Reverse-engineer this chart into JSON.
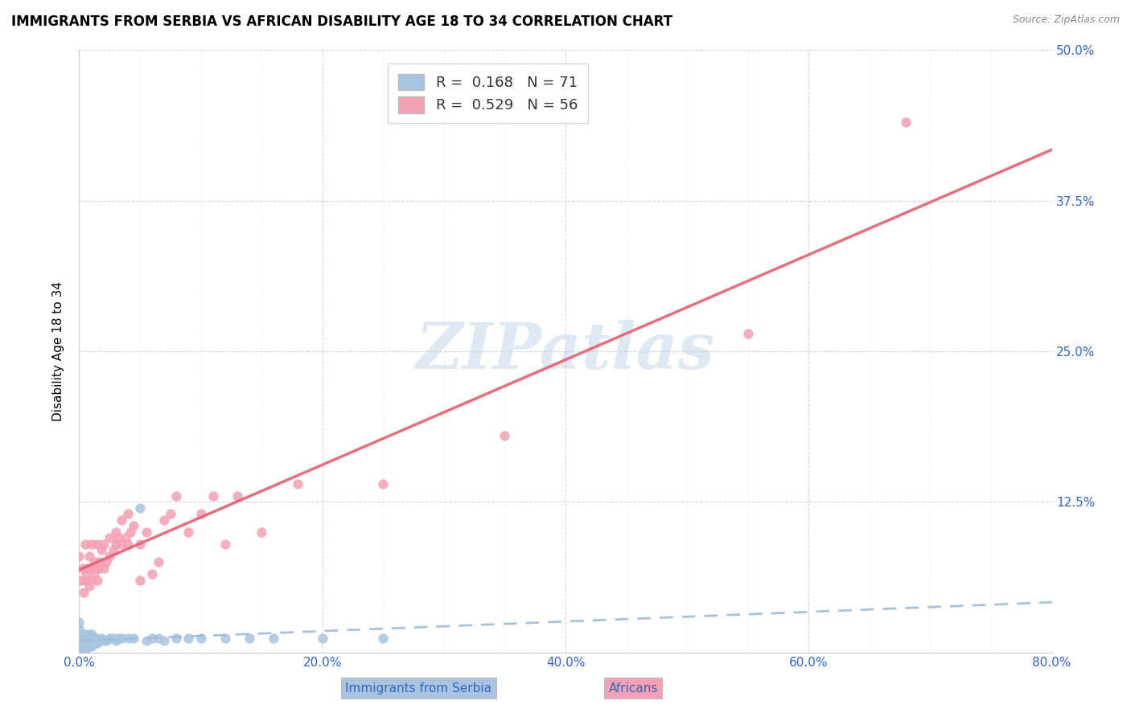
{
  "title": "IMMIGRANTS FROM SERBIA VS AFRICAN DISABILITY AGE 18 TO 34 CORRELATION CHART",
  "source": "Source: ZipAtlas.com",
  "ylabel": "Disability Age 18 to 34",
  "xlim": [
    0.0,
    0.8
  ],
  "ylim": [
    0.0,
    0.5
  ],
  "ytick_labels": [
    "",
    "12.5%",
    "25.0%",
    "37.5%",
    "50.0%"
  ],
  "ytick_values": [
    0.0,
    0.125,
    0.25,
    0.375,
    0.5
  ],
  "serbia_color": "#a8c4e0",
  "african_color": "#f4a0b5",
  "serbia_line_color": "#a0b8d0",
  "african_line_color": "#e06070",
  "serbia_R": 0.168,
  "serbia_N": 71,
  "african_R": 0.529,
  "african_N": 56,
  "legend_label_serbia": "Immigrants from Serbia",
  "legend_label_african": "Africans",
  "watermark": "ZIPatlas",
  "watermark_color": "#c8d8e8",
  "serbia_scatter_x": [
    0.0,
    0.0,
    0.0,
    0.0,
    0.0,
    0.0,
    0.0,
    0.0,
    0.0,
    0.0,
    0.002,
    0.002,
    0.002,
    0.002,
    0.003,
    0.003,
    0.003,
    0.003,
    0.004,
    0.004,
    0.004,
    0.005,
    0.005,
    0.005,
    0.005,
    0.005,
    0.006,
    0.006,
    0.007,
    0.007,
    0.007,
    0.008,
    0.008,
    0.008,
    0.009,
    0.009,
    0.01,
    0.01,
    0.01,
    0.01,
    0.012,
    0.012,
    0.013,
    0.014,
    0.015,
    0.015,
    0.016,
    0.017,
    0.018,
    0.02,
    0.022,
    0.025,
    0.028,
    0.03,
    0.032,
    0.035,
    0.04,
    0.045,
    0.05,
    0.055,
    0.06,
    0.065,
    0.07,
    0.08,
    0.09,
    0.1,
    0.12,
    0.14,
    0.16,
    0.2,
    0.25
  ],
  "serbia_scatter_y": [
    0.0,
    0.0,
    0.0,
    0.005,
    0.005,
    0.008,
    0.01,
    0.01,
    0.02,
    0.025,
    0.0,
    0.005,
    0.008,
    0.01,
    0.0,
    0.005,
    0.008,
    0.015,
    0.005,
    0.008,
    0.012,
    0.0,
    0.005,
    0.008,
    0.01,
    0.015,
    0.005,
    0.01,
    0.005,
    0.008,
    0.01,
    0.005,
    0.008,
    0.015,
    0.008,
    0.012,
    0.005,
    0.008,
    0.01,
    0.015,
    0.008,
    0.012,
    0.01,
    0.01,
    0.008,
    0.012,
    0.01,
    0.01,
    0.012,
    0.01,
    0.01,
    0.012,
    0.012,
    0.01,
    0.012,
    0.012,
    0.012,
    0.012,
    0.12,
    0.01,
    0.012,
    0.012,
    0.01,
    0.012,
    0.012,
    0.012,
    0.012,
    0.012,
    0.012,
    0.012,
    0.012
  ],
  "african_scatter_x": [
    0.0,
    0.002,
    0.003,
    0.004,
    0.005,
    0.005,
    0.006,
    0.007,
    0.008,
    0.008,
    0.009,
    0.01,
    0.01,
    0.012,
    0.013,
    0.014,
    0.015,
    0.015,
    0.016,
    0.017,
    0.018,
    0.02,
    0.02,
    0.022,
    0.025,
    0.025,
    0.028,
    0.03,
    0.03,
    0.032,
    0.035,
    0.035,
    0.038,
    0.04,
    0.04,
    0.042,
    0.045,
    0.05,
    0.05,
    0.055,
    0.06,
    0.065,
    0.07,
    0.075,
    0.08,
    0.09,
    0.1,
    0.11,
    0.12,
    0.13,
    0.15,
    0.18,
    0.25,
    0.35,
    0.55,
    0.68
  ],
  "african_scatter_y": [
    0.08,
    0.06,
    0.07,
    0.05,
    0.06,
    0.09,
    0.065,
    0.07,
    0.055,
    0.08,
    0.07,
    0.06,
    0.09,
    0.065,
    0.075,
    0.07,
    0.06,
    0.09,
    0.07,
    0.075,
    0.085,
    0.07,
    0.09,
    0.075,
    0.08,
    0.095,
    0.085,
    0.09,
    0.1,
    0.095,
    0.09,
    0.11,
    0.095,
    0.09,
    0.115,
    0.1,
    0.105,
    0.06,
    0.09,
    0.1,
    0.065,
    0.075,
    0.11,
    0.115,
    0.13,
    0.1,
    0.115,
    0.13,
    0.09,
    0.13,
    0.1,
    0.14,
    0.14,
    0.18,
    0.265,
    0.44
  ]
}
